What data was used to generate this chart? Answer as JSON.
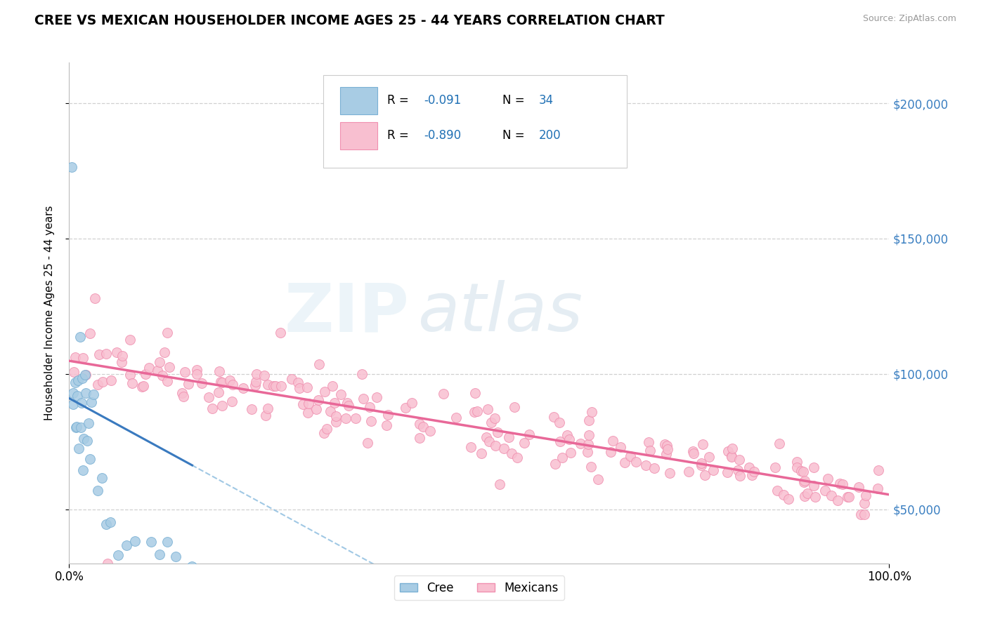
{
  "title": "CREE VS MEXICAN HOUSEHOLDER INCOME AGES 25 - 44 YEARS CORRELATION CHART",
  "source": "Source: ZipAtlas.com",
  "ylabel": "Householder Income Ages 25 - 44 years",
  "xlim": [
    0.0,
    100.0
  ],
  "ylim": [
    30000,
    215000
  ],
  "yticks": [
    50000,
    100000,
    150000,
    200000
  ],
  "ytick_labels": [
    "$50,000",
    "$100,000",
    "$150,000",
    "$200,000"
  ],
  "xtick_labels": [
    "0.0%",
    "100.0%"
  ],
  "cree_color": "#a8cce4",
  "cree_edge_color": "#7ab0d4",
  "mexican_color": "#f8bfd0",
  "mexican_edge_color": "#f090b0",
  "cree_line_color": "#3a7abf",
  "cree_dash_color": "#90bfe0",
  "mexican_line_color": "#e86898",
  "cree_R": -0.091,
  "cree_N": 34,
  "mexican_R": -0.89,
  "mexican_N": 200,
  "legend_num_color": "#2171b5",
  "background_color": "#ffffff",
  "grid_color": "#d0d0d0",
  "right_tick_color": "#3a7fc1"
}
